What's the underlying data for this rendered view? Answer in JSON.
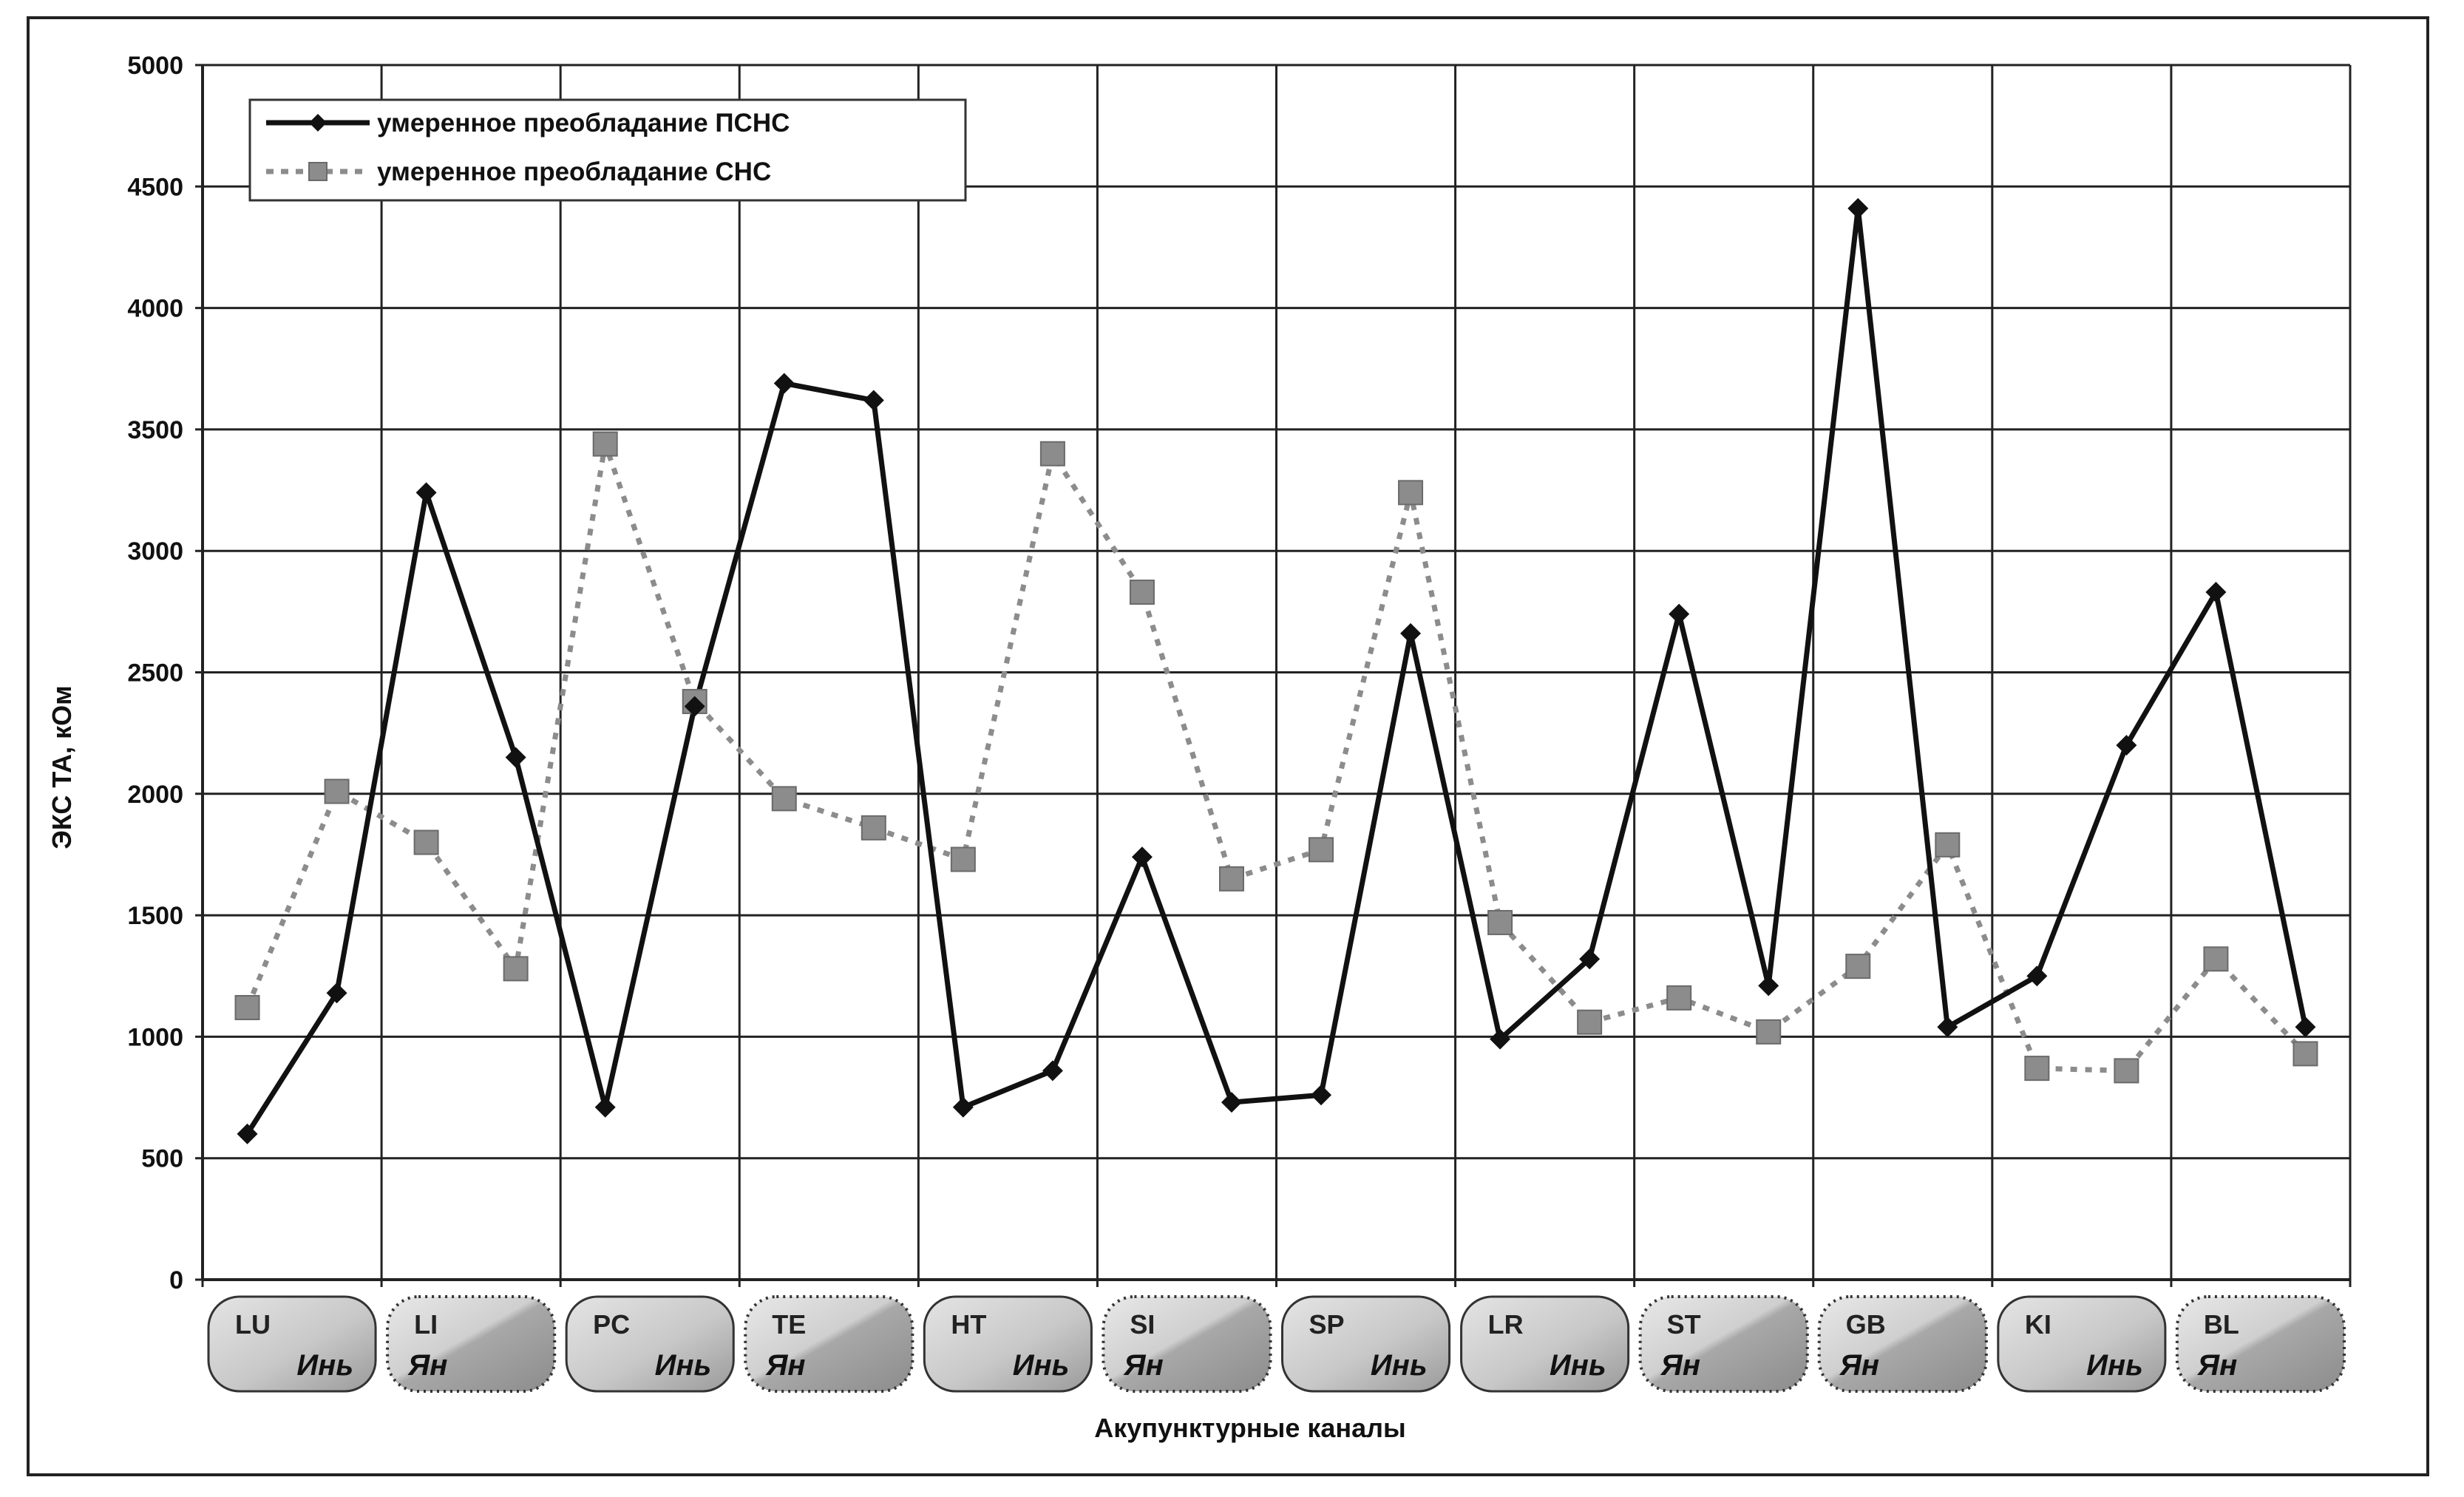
{
  "chart_data": {
    "type": "line",
    "ylabel": "ЭКС ТА, кОм",
    "xlabel": "Акупунктурные каналы",
    "ylim": [
      0,
      5000
    ],
    "yticks": [
      0,
      500,
      1000,
      1500,
      2000,
      2500,
      3000,
      3500,
      4000,
      4500,
      5000
    ],
    "grid": true,
    "legend_position": "top-left",
    "channels": [
      {
        "code": "LU",
        "type": "Инь"
      },
      {
        "code": "LI",
        "type": "Ян"
      },
      {
        "code": "PC",
        "type": "Инь"
      },
      {
        "code": "TE",
        "type": "Ян"
      },
      {
        "code": "HT",
        "type": "Инь"
      },
      {
        "code": "SI",
        "type": "Ян"
      },
      {
        "code": "SP",
        "type": "Инь"
      },
      {
        "code": "LR",
        "type": "Инь"
      },
      {
        "code": "ST",
        "type": "Ян"
      },
      {
        "code": "GB",
        "type": "Ян"
      },
      {
        "code": "KI",
        "type": "Инь"
      },
      {
        "code": "BL",
        "type": "Ян"
      }
    ],
    "series": [
      {
        "name": "умеренное преобладание ПСНС",
        "style": "solid",
        "marker": "diamond",
        "color": "#111111",
        "values": [
          600,
          1180,
          3240,
          2150,
          710,
          2360,
          3690,
          3620,
          710,
          860,
          1740,
          730,
          760,
          2660,
          990,
          1320,
          2740,
          1210,
          4410,
          1040,
          1250,
          2200,
          2830,
          1040
        ]
      },
      {
        "name": "умеренное преобладание СНС",
        "style": "dotted",
        "marker": "square",
        "color": "#8c8c8c",
        "values": [
          1120,
          2010,
          1800,
          1280,
          3440,
          2380,
          1980,
          1860,
          1730,
          3400,
          2830,
          1650,
          1770,
          3240,
          1470,
          1060,
          1160,
          1020,
          1290,
          1790,
          870,
          860,
          1320,
          930
        ]
      }
    ]
  }
}
